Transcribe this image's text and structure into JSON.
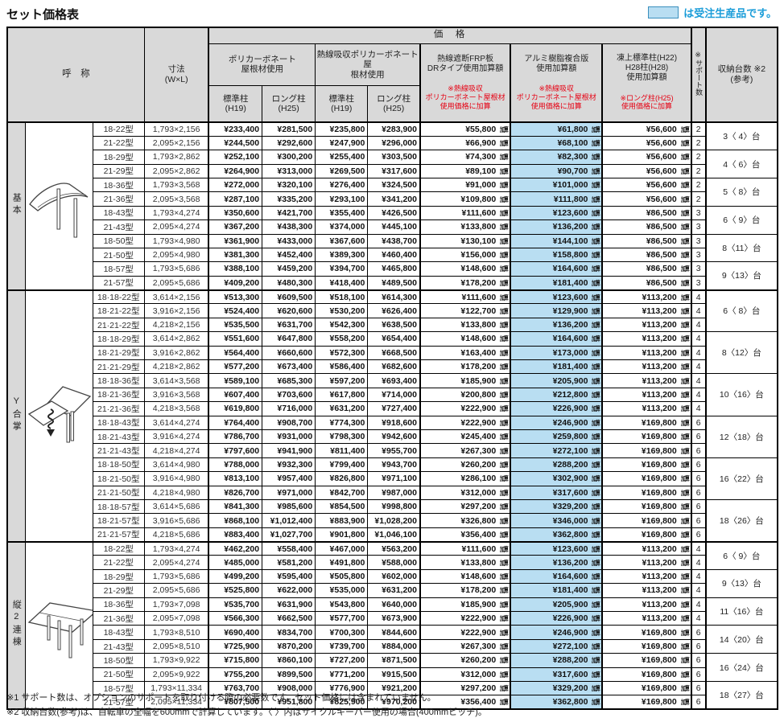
{
  "title": "セット価格表",
  "legend": {
    "text": "は受注生産品です。",
    "box_color": "#b9def2"
  },
  "header": {
    "name": "呼　称",
    "size": "寸法\n(W×L)",
    "price": "価　格",
    "roof1": "ポリカーボネート\n屋根材使用",
    "roof2": "熱線吸収ポリカーボネート屋\n根材使用",
    "pillars": [
      "標準柱\n(H19)",
      "ロング柱\n(H25)",
      "標準柱\n(H19)",
      "ロング柱\n(H25)"
    ],
    "add1": {
      "label": "熱線遮断FRP板\nDRタイプ使用加算額",
      "note": "※熱線吸収\nポリカーボネート屋根材\n使用価格に加算"
    },
    "add2": {
      "label": "アルミ樹脂複合版\n使用加算額",
      "note": "※熱線吸収\nポリカーボネート屋根材\n使用価格に加算"
    },
    "add3": {
      "label": "凍上標準柱(H22)\nH28柱(H28)\n使用加算額",
      "note": "※ロング柱(H25)\n使用価格に加算"
    },
    "support": "※サポート数",
    "storage": "収納台数 ※2\n(参考)"
  },
  "add_suffix": "加算",
  "highlight_color": "#b9def2",
  "note_color": "#e60012",
  "groups": [
    {
      "label": "基本",
      "icon": "basic",
      "rows": [
        [
          "18-22型",
          "1,793×2,156",
          "¥233,400",
          "¥281,500",
          "¥235,800",
          "¥283,900",
          "¥55,800",
          "¥61,800",
          "¥56,600",
          "2"
        ],
        [
          "21-22型",
          "2,095×2,156",
          "¥244,500",
          "¥292,600",
          "¥247,900",
          "¥296,000",
          "¥66,900",
          "¥68,100",
          "¥56,600",
          "2"
        ],
        [
          "18-29型",
          "1,793×2,862",
          "¥252,100",
          "¥300,200",
          "¥255,400",
          "¥303,500",
          "¥74,300",
          "¥82,300",
          "¥56,600",
          "2"
        ],
        [
          "21-29型",
          "2,095×2,862",
          "¥264,900",
          "¥313,000",
          "¥269,500",
          "¥317,600",
          "¥89,100",
          "¥90,700",
          "¥56,600",
          "2"
        ],
        [
          "18-36型",
          "1,793×3,568",
          "¥272,000",
          "¥320,100",
          "¥276,400",
          "¥324,500",
          "¥91,000",
          "¥101,000",
          "¥56,600",
          "2"
        ],
        [
          "21-36型",
          "2,095×3,568",
          "¥287,100",
          "¥335,200",
          "¥293,100",
          "¥341,200",
          "¥109,800",
          "¥111,800",
          "¥56,600",
          "2"
        ],
        [
          "18-43型",
          "1,793×4,274",
          "¥350,600",
          "¥421,700",
          "¥355,400",
          "¥426,500",
          "¥111,600",
          "¥123,600",
          "¥86,500",
          "3"
        ],
        [
          "21-43型",
          "2,095×4,274",
          "¥367,200",
          "¥438,300",
          "¥374,000",
          "¥445,100",
          "¥133,800",
          "¥136,200",
          "¥86,500",
          "3"
        ],
        [
          "18-50型",
          "1,793×4,980",
          "¥361,900",
          "¥433,000",
          "¥367,600",
          "¥438,700",
          "¥130,100",
          "¥144,100",
          "¥86,500",
          "3"
        ],
        [
          "21-50型",
          "2,095×4,980",
          "¥381,300",
          "¥452,400",
          "¥389,300",
          "¥460,400",
          "¥156,000",
          "¥158,800",
          "¥86,500",
          "3"
        ],
        [
          "18-57型",
          "1,793×5,686",
          "¥388,100",
          "¥459,200",
          "¥394,700",
          "¥465,800",
          "¥148,600",
          "¥164,600",
          "¥86,500",
          "3"
        ],
        [
          "21-57型",
          "2,095×5,686",
          "¥409,200",
          "¥480,300",
          "¥418,400",
          "¥489,500",
          "¥178,200",
          "¥181,400",
          "¥86,500",
          "3"
        ]
      ],
      "storage": [
        [
          "3〈 4〉台",
          2
        ],
        [
          "4〈 6〉台",
          2
        ],
        [
          "5〈 8〉台",
          2
        ],
        [
          "6〈 9〉台",
          2
        ],
        [
          "8〈11〉台",
          2
        ],
        [
          "9〈13〉台",
          2
        ]
      ]
    },
    {
      "label": "Y合掌",
      "icon": "y",
      "rows": [
        [
          "18·18-22型",
          "3,614×2,156",
          "¥513,300",
          "¥609,500",
          "¥518,100",
          "¥614,300",
          "¥111,600",
          "¥123,600",
          "¥113,200",
          "4"
        ],
        [
          "18·21-22型",
          "3,916×2,156",
          "¥524,400",
          "¥620,600",
          "¥530,200",
          "¥626,400",
          "¥122,700",
          "¥129,900",
          "¥113,200",
          "4"
        ],
        [
          "21·21-22型",
          "4,218×2,156",
          "¥535,500",
          "¥631,700",
          "¥542,300",
          "¥638,500",
          "¥133,800",
          "¥136,200",
          "¥113,200",
          "4"
        ],
        [
          "18·18-29型",
          "3,614×2,862",
          "¥551,600",
          "¥647,800",
          "¥558,200",
          "¥654,400",
          "¥148,600",
          "¥164,600",
          "¥113,200",
          "4"
        ],
        [
          "18·21-29型",
          "3,916×2,862",
          "¥564,400",
          "¥660,600",
          "¥572,300",
          "¥668,500",
          "¥163,400",
          "¥173,000",
          "¥113,200",
          "4"
        ],
        [
          "21·21-29型",
          "4,218×2,862",
          "¥577,200",
          "¥673,400",
          "¥586,400",
          "¥682,600",
          "¥178,200",
          "¥181,400",
          "¥113,200",
          "4"
        ],
        [
          "18·18-36型",
          "3,614×3,568",
          "¥589,100",
          "¥685,300",
          "¥597,200",
          "¥693,400",
          "¥185,900",
          "¥205,900",
          "¥113,200",
          "4"
        ],
        [
          "18·21-36型",
          "3,916×3,568",
          "¥607,400",
          "¥703,600",
          "¥617,800",
          "¥714,000",
          "¥200,800",
          "¥212,800",
          "¥113,200",
          "4"
        ],
        [
          "21·21-36型",
          "4,218×3,568",
          "¥619,800",
          "¥716,000",
          "¥631,200",
          "¥727,400",
          "¥222,900",
          "¥226,900",
          "¥113,200",
          "4"
        ],
        [
          "18·18-43型",
          "3,614×4,274",
          "¥764,400",
          "¥908,700",
          "¥774,300",
          "¥918,600",
          "¥222,900",
          "¥246,900",
          "¥169,800",
          "6"
        ],
        [
          "18·21-43型",
          "3,916×4,274",
          "¥786,700",
          "¥931,000",
          "¥798,300",
          "¥942,600",
          "¥245,400",
          "¥259,800",
          "¥169,800",
          "6"
        ],
        [
          "21·21-43型",
          "4,218×4,274",
          "¥797,600",
          "¥941,900",
          "¥811,400",
          "¥955,700",
          "¥267,300",
          "¥272,100",
          "¥169,800",
          "6"
        ],
        [
          "18·18-50型",
          "3,614×4,980",
          "¥788,000",
          "¥932,300",
          "¥799,400",
          "¥943,700",
          "¥260,200",
          "¥288,200",
          "¥169,800",
          "6"
        ],
        [
          "18·21-50型",
          "3,916×4,980",
          "¥813,100",
          "¥957,400",
          "¥826,800",
          "¥971,100",
          "¥286,100",
          "¥302,900",
          "¥169,800",
          "6"
        ],
        [
          "21·21-50型",
          "4,218×4,980",
          "¥826,700",
          "¥971,000",
          "¥842,700",
          "¥987,000",
          "¥312,000",
          "¥317,600",
          "¥169,800",
          "6"
        ],
        [
          "18·18-57型",
          "3,614×5,686",
          "¥841,300",
          "¥985,600",
          "¥854,500",
          "¥998,800",
          "¥297,200",
          "¥329,200",
          "¥169,800",
          "6"
        ],
        [
          "18·21-57型",
          "3,916×5,686",
          "¥868,100",
          "¥1,012,400",
          "¥883,900",
          "¥1,028,200",
          "¥326,800",
          "¥346,000",
          "¥169,800",
          "6"
        ],
        [
          "21·21-57型",
          "4,218×5,686",
          "¥883,400",
          "¥1,027,700",
          "¥901,800",
          "¥1,046,100",
          "¥356,400",
          "¥362,800",
          "¥169,800",
          "6"
        ]
      ],
      "storage": [
        [
          "6〈 8〉台",
          3
        ],
        [
          "8〈12〉台",
          3
        ],
        [
          "10〈16〉台",
          3
        ],
        [
          "12〈18〉台",
          3
        ],
        [
          "16〈22〉台",
          3
        ],
        [
          "18〈26〉台",
          3
        ]
      ]
    },
    {
      "label": "縦2連棟",
      "icon": "tandem",
      "rows": [
        [
          "18-22型",
          "1,793×4,274",
          "¥462,200",
          "¥558,400",
          "¥467,000",
          "¥563,200",
          "¥111,600",
          "¥123,600",
          "¥113,200",
          "4"
        ],
        [
          "21-22型",
          "2,095×4,274",
          "¥485,000",
          "¥581,200",
          "¥491,800",
          "¥588,000",
          "¥133,800",
          "¥136,200",
          "¥113,200",
          "4"
        ],
        [
          "18-29型",
          "1,793×5,686",
          "¥499,200",
          "¥595,400",
          "¥505,800",
          "¥602,000",
          "¥148,600",
          "¥164,600",
          "¥113,200",
          "4"
        ],
        [
          "21-29型",
          "2,095×5,686",
          "¥525,800",
          "¥622,000",
          "¥535,000",
          "¥631,200",
          "¥178,200",
          "¥181,400",
          "¥113,200",
          "4"
        ],
        [
          "18-36型",
          "1,793×7,098",
          "¥535,700",
          "¥631,900",
          "¥543,800",
          "¥640,000",
          "¥185,900",
          "¥205,900",
          "¥113,200",
          "4"
        ],
        [
          "21-36型",
          "2,095×7,098",
          "¥566,300",
          "¥662,500",
          "¥577,700",
          "¥673,900",
          "¥222,900",
          "¥226,900",
          "¥113,200",
          "4"
        ],
        [
          "18-43型",
          "1,793×8,510",
          "¥690,400",
          "¥834,700",
          "¥700,300",
          "¥844,600",
          "¥222,900",
          "¥246,900",
          "¥169,800",
          "6"
        ],
        [
          "21-43型",
          "2,095×8,510",
          "¥725,900",
          "¥870,200",
          "¥739,700",
          "¥884,000",
          "¥267,300",
          "¥272,100",
          "¥169,800",
          "6"
        ],
        [
          "18-50型",
          "1,793×9,922",
          "¥715,800",
          "¥860,100",
          "¥727,200",
          "¥871,500",
          "¥260,200",
          "¥288,200",
          "¥169,800",
          "6"
        ],
        [
          "21-50型",
          "2,095×9,922",
          "¥755,200",
          "¥899,500",
          "¥771,200",
          "¥915,500",
          "¥312,000",
          "¥317,600",
          "¥169,800",
          "6"
        ],
        [
          "18-57型",
          "1,793×11,334",
          "¥763,700",
          "¥908,000",
          "¥776,900",
          "¥921,200",
          "¥297,200",
          "¥329,200",
          "¥169,800",
          "6"
        ],
        [
          "21-57型",
          "2,095×11,334",
          "¥807,500",
          "¥951,800",
          "¥825,900",
          "¥970,200",
          "¥356,400",
          "¥362,800",
          "¥169,800",
          "6"
        ]
      ],
      "storage": [
        [
          "6〈 9〉台",
          2
        ],
        [
          "9〈13〉台",
          2
        ],
        [
          "11〈16〉台",
          2
        ],
        [
          "14〈20〉台",
          2
        ],
        [
          "16〈24〉台",
          2
        ],
        [
          "18〈27〉台",
          2
        ]
      ]
    }
  ],
  "footnotes": [
    "※1 サポート数は、オプションのサポートを取り付ける際の必要数です。セット価格には含まれていません。",
    "※2 収納台数(参考)は、自転車の全幅を600mmで計算しています。〈 〉内はサイクルキーパー使用の場合(400mmピッチ)。"
  ]
}
